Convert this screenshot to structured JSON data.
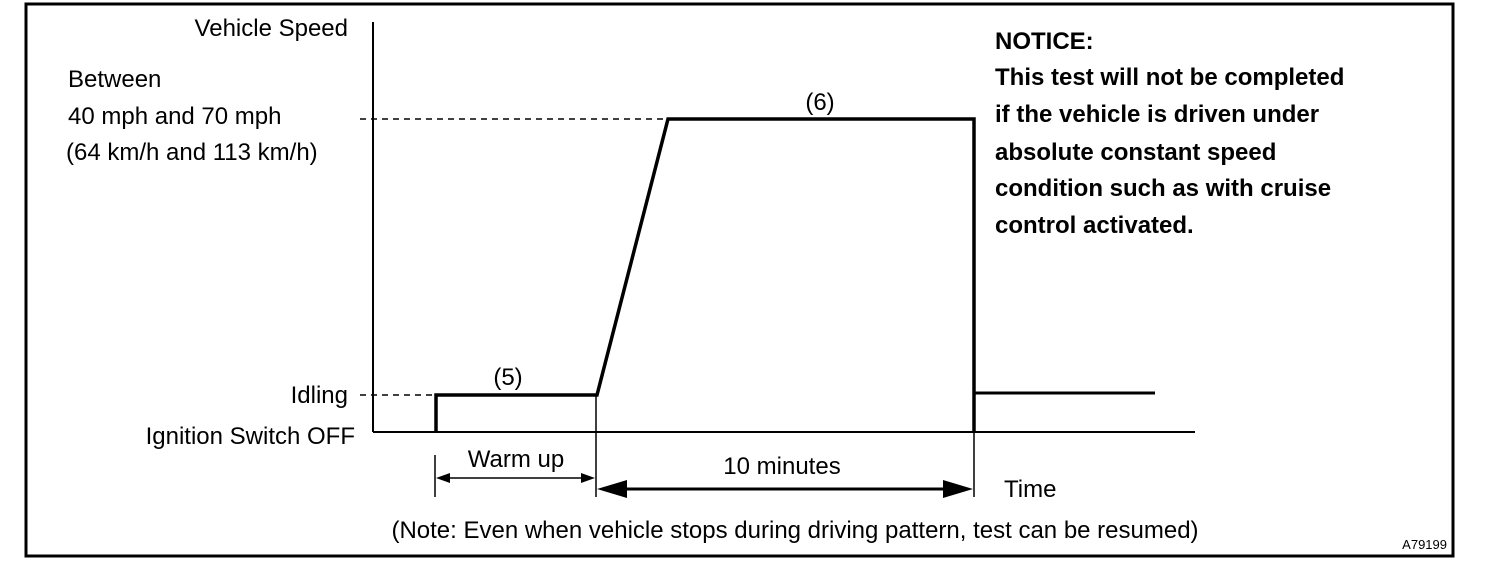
{
  "labels": {
    "y_axis": "Vehicle Speed",
    "x_axis": "Time",
    "speed_level_1": "Between",
    "speed_level_2": "40 mph and 70 mph",
    "speed_level_3": "(64 km/h and 113 km/h)",
    "idling": "Idling",
    "ignition_off": "Ignition Switch OFF",
    "step_5": "(5)",
    "step_6": "(6)",
    "warm_up": "Warm up",
    "ten_minutes": "10 minutes",
    "footnote": "(Note: Even when vehicle stops during driving pattern, test can be resumed)",
    "figure_id": "A79199"
  },
  "notice": {
    "title": "NOTICE:",
    "lines": [
      "This test will not be completed",
      "if the vehicle is driven under",
      "absolute constant speed",
      "condition such as with cruise",
      "control activated."
    ]
  }
}
